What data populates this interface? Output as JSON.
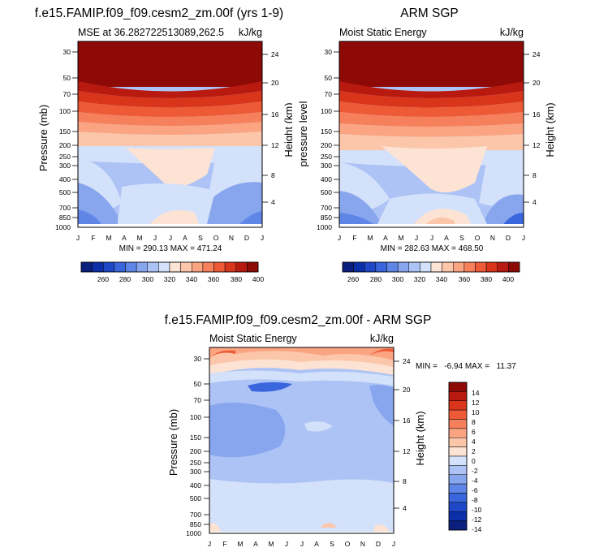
{
  "palette": [
    "#0a1f7e",
    "#0b2fa8",
    "#1f48c9",
    "#3a66dd",
    "#5f86e6",
    "#87a6ee",
    "#adc3f5",
    "#d3e1fa",
    "#fde3d3",
    "#fcc6aa",
    "#fba482",
    "#f7805c",
    "#ee5a36",
    "#d8351b",
    "#b81a10",
    "#8e0a06"
  ],
  "panels": [
    {
      "title": "f.e15.FAMIP.f09_f09.cesm2_zm.00f (yrs 1-9)",
      "subtitle_left": "MSE at 36.282722513089,262.5",
      "subtitle_right": "kJ/kg",
      "ylabel": "Pressure (mb)",
      "ylabel_right": "Height (km)",
      "minmax": "MIN = 290.13 MAX = 471.24"
    },
    {
      "title": "ARM SGP",
      "subtitle_left": "Moist Static Energy",
      "subtitle_right": "kJ/kg",
      "ylabel": "pressure level",
      "ylabel_right": "Height (km)",
      "minmax": "MIN = 282.63 MAX = 468.50"
    },
    {
      "title": "f.e15.FAMIP.f09_f09.cesm2_zm.00f - ARM SGP",
      "subtitle_left": "Moist Static Energy",
      "subtitle_right": "kJ/kg",
      "ylabel": "Pressure (mb)",
      "ylabel_right": "Height (km)",
      "minmax": "MIN =   -6.94 MAX =   11.37"
    }
  ],
  "chart_data": [
    {
      "type": "heatmap",
      "x": [
        "J",
        "F",
        "M",
        "A",
        "M",
        "J",
        "J",
        "A",
        "S",
        "O",
        "N",
        "D",
        "J"
      ],
      "y_pressure_ticks": [
        "30",
        "50",
        "70",
        "100",
        "150",
        "200",
        "250",
        "300",
        "400",
        "500",
        "700",
        "850",
        "1000"
      ],
      "y_height_ticks": [
        "24",
        "20",
        "16",
        "12",
        "8",
        "4"
      ],
      "colorbar": {
        "levels": [
          "260",
          "280",
          "300",
          "320",
          "340",
          "360",
          "380",
          "400"
        ]
      }
    },
    {
      "type": "heatmap",
      "x": [
        "J",
        "F",
        "M",
        "A",
        "M",
        "J",
        "J",
        "A",
        "S",
        "O",
        "N",
        "D",
        "J"
      ],
      "y_pressure_ticks": [
        "30",
        "50",
        "70",
        "100",
        "150",
        "200",
        "250",
        "300",
        "400",
        "500",
        "700",
        "850",
        "1000"
      ],
      "y_height_ticks": [
        "24",
        "20",
        "16",
        "12",
        "8",
        "4"
      ],
      "colorbar": {
        "levels": [
          "260",
          "280",
          "300",
          "320",
          "340",
          "360",
          "380",
          "400"
        ]
      }
    },
    {
      "type": "heatmap",
      "x": [
        "J",
        "F",
        "M",
        "A",
        "M",
        "J",
        "J",
        "A",
        "S",
        "O",
        "N",
        "D",
        "J"
      ],
      "y_pressure_ticks": [
        "30",
        "50",
        "70",
        "100",
        "150",
        "200",
        "250",
        "300",
        "400",
        "500",
        "700",
        "850",
        "1000"
      ],
      "y_height_ticks": [
        "24",
        "20",
        "16",
        "12",
        "8",
        "4"
      ],
      "colorbar": {
        "levels": [
          "14",
          "12",
          "10",
          "8",
          "6",
          "4",
          "2",
          "0",
          "-2",
          "-4",
          "-6",
          "-8",
          "-10",
          "-12",
          "-14"
        ]
      }
    }
  ]
}
